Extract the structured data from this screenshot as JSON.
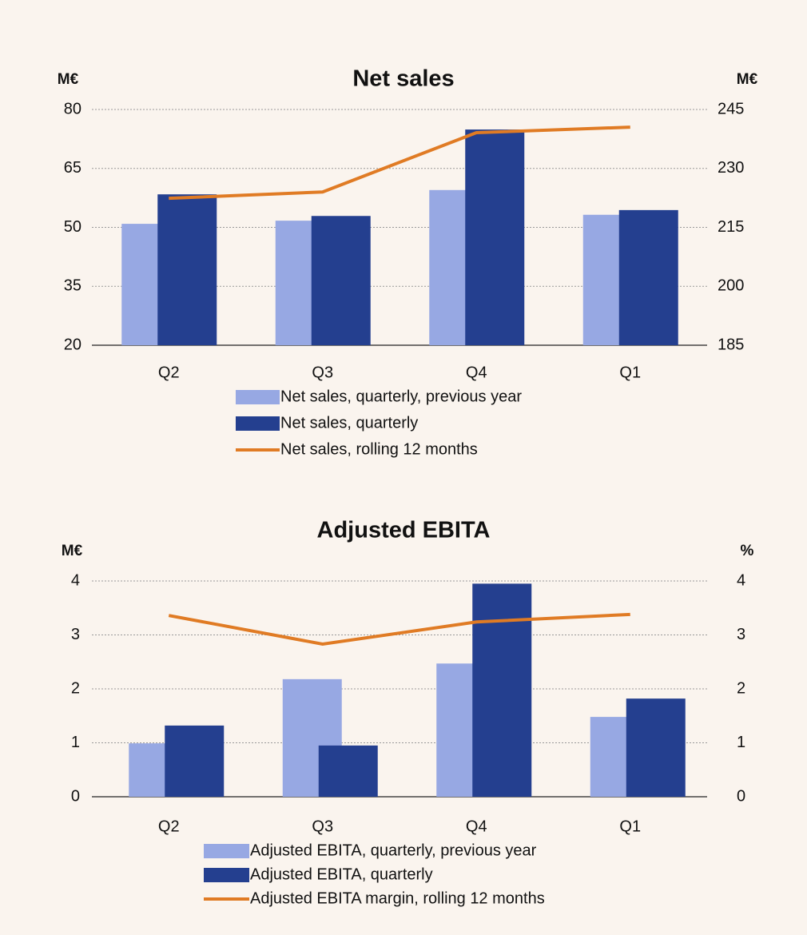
{
  "chart_data": [
    {
      "type": "bar",
      "title": "Net sales",
      "y_axis_label": "M€",
      "y2_axis_label": "M€",
      "categories": [
        "Q2",
        "Q3",
        "Q4",
        "Q1"
      ],
      "series": [
        {
          "name": "Net sales, quarterly, previous year",
          "color": "#97a8e3",
          "values": [
            50.9,
            51.7,
            59.5,
            53.2
          ]
        },
        {
          "name": "Net sales, quarterly",
          "color": "#243f8f",
          "values": [
            58.4,
            52.9,
            74.9,
            54.4
          ]
        },
        {
          "name": "Net sales, rolling 12 months",
          "color": "#e07b24",
          "type": "line",
          "axis": "y2",
          "values": [
            222.4,
            224.0,
            239.1,
            240.5
          ]
        }
      ],
      "ylim": [
        20,
        80
      ],
      "yticks": [
        20,
        35,
        50,
        65,
        80
      ],
      "y2lim": [
        185,
        245
      ],
      "y2ticks": [
        185,
        200,
        215,
        230,
        245
      ],
      "grid": true
    },
    {
      "type": "bar",
      "title": "Adjusted EBITA",
      "y_axis_label": "M€",
      "y2_axis_label": "%",
      "categories": [
        "Q2",
        "Q3",
        "Q4",
        "Q1"
      ],
      "series": [
        {
          "name": "Adjusted EBITA, quarterly, previous year",
          "color": "#97a8e3",
          "values": [
            0.99,
            2.18,
            2.47,
            1.48
          ]
        },
        {
          "name": "Adjusted EBITA, quarterly",
          "color": "#243f8f",
          "values": [
            1.32,
            0.95,
            3.95,
            1.82
          ]
        },
        {
          "name": "Adjusted EBITA margin, rolling 12 months",
          "color": "#e07b24",
          "type": "line",
          "axis": "y2",
          "values": [
            3.36,
            2.83,
            3.24,
            3.38
          ]
        }
      ],
      "ylim": [
        0,
        4
      ],
      "yticks": [
        0,
        1,
        2,
        3,
        4
      ],
      "y2lim": [
        0,
        4
      ],
      "y2ticks": [
        0,
        1,
        2,
        3,
        4
      ],
      "grid": true
    }
  ]
}
